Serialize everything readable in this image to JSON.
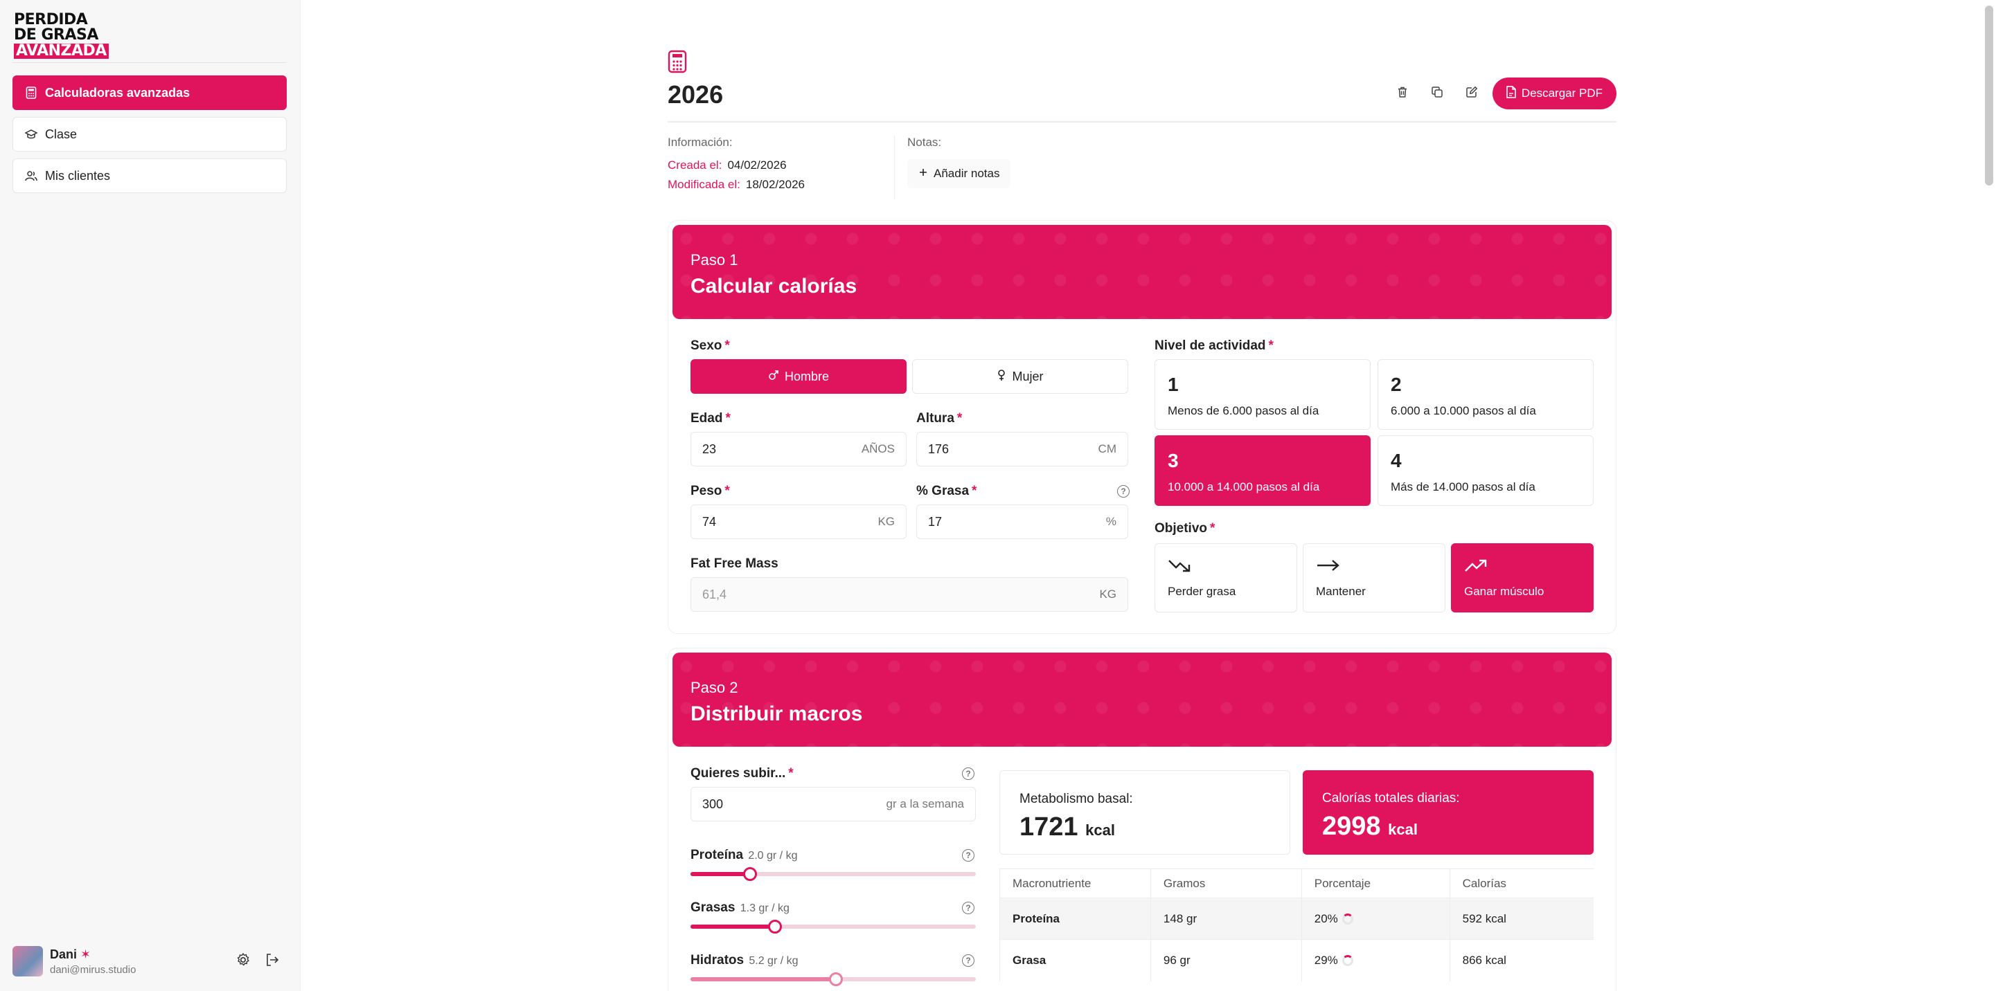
{
  "brand": {
    "line1": "PERDIDA",
    "line2": "DE GRASA",
    "line3": "AVANZADA"
  },
  "nav": {
    "items": [
      {
        "label": "Calculadoras avanzadas"
      },
      {
        "label": "Clase"
      },
      {
        "label": "Mis clientes"
      }
    ]
  },
  "user": {
    "name": "Dani",
    "email": "dani@mirus.studio"
  },
  "header": {
    "title": "2026",
    "pdf_label": "Descargar PDF"
  },
  "info": {
    "label": "Información:",
    "created_label": "Creada el:",
    "created_value": "04/02/2026",
    "modified_label": "Modificada el:",
    "modified_value": "18/02/2026",
    "notes_label": "Notas:",
    "add_notes_label": "Añadir notas"
  },
  "step1": {
    "step": "Paso 1",
    "title": "Calcular calorías",
    "sexo_label": "Sexo",
    "hombre": "Hombre",
    "mujer": "Mujer",
    "edad_label": "Edad",
    "edad_value": "23",
    "edad_unit": "AÑOS",
    "altura_label": "Altura",
    "altura_value": "176",
    "altura_unit": "CM",
    "peso_label": "Peso",
    "peso_value": "74",
    "peso_unit": "KG",
    "grasa_label": "% Grasa",
    "grasa_value": "17",
    "grasa_unit": "%",
    "ffm_label": "Fat Free Mass",
    "ffm_value": "61,4",
    "ffm_unit": "KG",
    "actividad_label": "Nivel de actividad",
    "actividad": [
      {
        "n": "1",
        "d": "Menos de 6.000 pasos al día"
      },
      {
        "n": "2",
        "d": "6.000 a 10.000 pasos al día"
      },
      {
        "n": "3",
        "d": "10.000 a 14.000 pasos al día"
      },
      {
        "n": "4",
        "d": "Más de 14.000 pasos al día"
      }
    ],
    "objetivo_label": "Objetivo",
    "objetivos": [
      {
        "d": "Perder grasa"
      },
      {
        "d": "Mantener"
      },
      {
        "d": "Ganar músculo"
      }
    ]
  },
  "step2": {
    "step": "Paso 2",
    "title": "Distribuir macros",
    "subir_label": "Quieres subir...",
    "subir_value": "300",
    "subir_unit": "gr a la semana",
    "proteina_label": "Proteína",
    "proteina_sub": "2.0 gr / kg",
    "grasas_label": "Grasas",
    "grasas_sub": "1.3 gr / kg",
    "hidratos_label": "Hidratos",
    "hidratos_sub": "5.2 gr / kg",
    "basal_label": "Metabolismo basal:",
    "basal_value": "1721",
    "basal_unit": "kcal",
    "total_label": "Calorías totales diarias:",
    "total_value": "2998",
    "total_unit": "kcal",
    "table": {
      "headers": [
        "Macronutriente",
        "Gramos",
        "Porcentaje",
        "Calorías"
      ],
      "rows": [
        [
          "Proteína",
          "148 gr",
          "20%",
          "592 kcal"
        ],
        [
          "Grasa",
          "96 gr",
          "29%",
          "866 kcal"
        ]
      ]
    }
  }
}
